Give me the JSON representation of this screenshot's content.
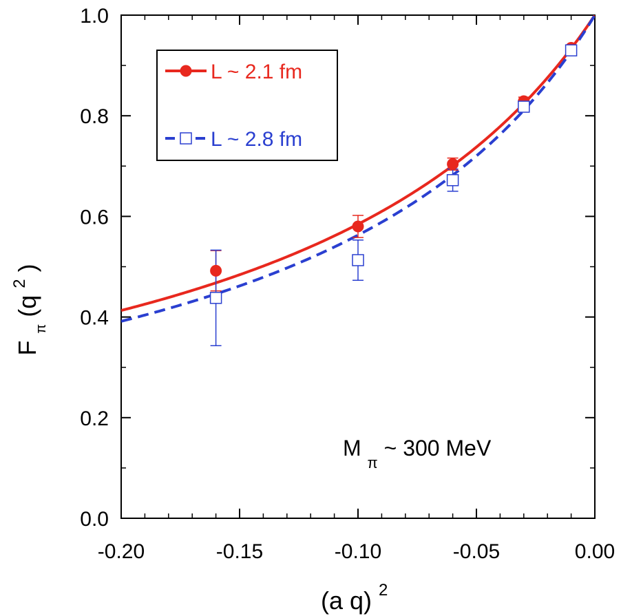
{
  "chart_data": {
    "type": "line",
    "xlabel": {
      "base": "(a q)",
      "sup": "2"
    },
    "ylabel": {
      "base": "F",
      "sub": "π",
      "rest": "(q",
      "sup": "2",
      "close": ")"
    },
    "xlim": [
      -0.2,
      0.0
    ],
    "ylim": [
      0.0,
      1.0
    ],
    "x_ticks": [
      "-0.20",
      "-0.15",
      "-0.10",
      "-0.05",
      "0.00"
    ],
    "y_ticks": [
      "0.0",
      "0.2",
      "0.4",
      "0.6",
      "0.8",
      "1.0"
    ],
    "grid": false,
    "legend_position": "top-left",
    "annotation": {
      "main": "M",
      "sub": "π",
      "rest": " ~ 300 MeV"
    },
    "series": [
      {
        "name": "L ~ 2.1 fm",
        "color": "#e8281e",
        "marker": "filled-circle",
        "line_style": "solid",
        "points": [
          {
            "x": -0.16,
            "y": 0.492,
            "err": 0.04
          },
          {
            "x": -0.1,
            "y": 0.58,
            "err": 0.022
          },
          {
            "x": -0.06,
            "y": 0.704,
            "err": 0.012
          },
          {
            "x": -0.03,
            "y": 0.829,
            "err": 0.008
          },
          {
            "x": -0.01,
            "y": 0.935,
            "err": 0.005
          }
        ],
        "fit_mass_sq": 0.1407
      },
      {
        "name": "L ~ 2.8 fm",
        "color": "#2a3fd0",
        "marker": "open-square",
        "line_style": "dashed",
        "points": [
          {
            "x": -0.16,
            "y": 0.438,
            "err": 0.095
          },
          {
            "x": -0.1,
            "y": 0.513,
            "err": 0.04
          },
          {
            "x": -0.06,
            "y": 0.672,
            "err": 0.022
          },
          {
            "x": -0.03,
            "y": 0.818,
            "err": 0.01
          },
          {
            "x": -0.01,
            "y": 0.93,
            "err": 0.006
          }
        ],
        "fit_mass_sq": 0.1287
      }
    ]
  }
}
